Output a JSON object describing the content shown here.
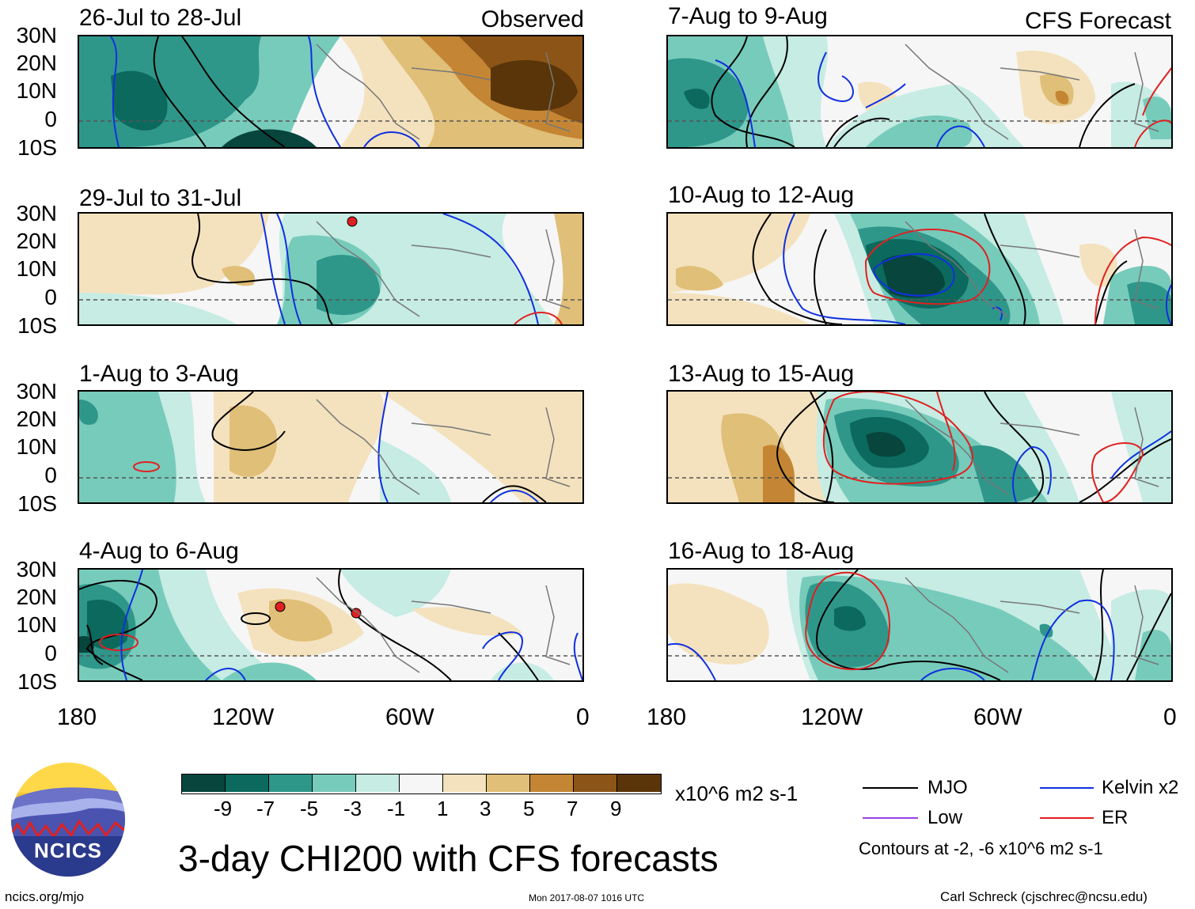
{
  "panels": {
    "left": [
      {
        "title": "26-Jul to 28-Jul",
        "corner": "Observed"
      },
      {
        "title": "29-Jul to 31-Jul",
        "corner": ""
      },
      {
        "title": "1-Aug to 3-Aug",
        "corner": ""
      },
      {
        "title": "4-Aug to 6-Aug",
        "corner": ""
      }
    ],
    "right": [
      {
        "title": "7-Aug to 9-Aug",
        "corner": "CFS Forecast"
      },
      {
        "title": "10-Aug to 12-Aug",
        "corner": ""
      },
      {
        "title": "13-Aug to 15-Aug",
        "corner": ""
      },
      {
        "title": "16-Aug to 18-Aug",
        "corner": ""
      }
    ]
  },
  "lat_labels": [
    "30N",
    "20N",
    "10N",
    "0",
    "10S"
  ],
  "lon_labels": [
    "180",
    "120W",
    "60W",
    "0"
  ],
  "colorbar": {
    "colors": [
      "#07453d",
      "#0b6a5d",
      "#2f978a",
      "#77cbbb",
      "#c6ece3",
      "#f6f6f6",
      "#f4e2be",
      "#e0bf78",
      "#c48634",
      "#8c5416",
      "#5a350a"
    ],
    "labels": [
      "-9",
      "-7",
      "-5",
      "-3",
      "-1",
      "1",
      "3",
      "5",
      "7",
      "9"
    ],
    "units": "x10^6 m2 s-1"
  },
  "legend": {
    "items": [
      {
        "label": "MJO",
        "color": "#000000"
      },
      {
        "label": "Kelvin x2",
        "color": "#1030e0"
      },
      {
        "label": "Low",
        "color": "#9a40e0"
      },
      {
        "label": "ER",
        "color": "#e02020"
      }
    ],
    "contours_note": "Contours at -2, -6 x10^6 m2 s-1"
  },
  "main_title": "3-day CHI200 with CFS forecasts",
  "logo": {
    "text": "NCICS"
  },
  "footer": {
    "url": "ncics.org/mjo",
    "timestamp": "Mon 2017-08-07 1016 UTC",
    "credit": "Carl Schreck (cjschrec@ncsu.edu)"
  }
}
